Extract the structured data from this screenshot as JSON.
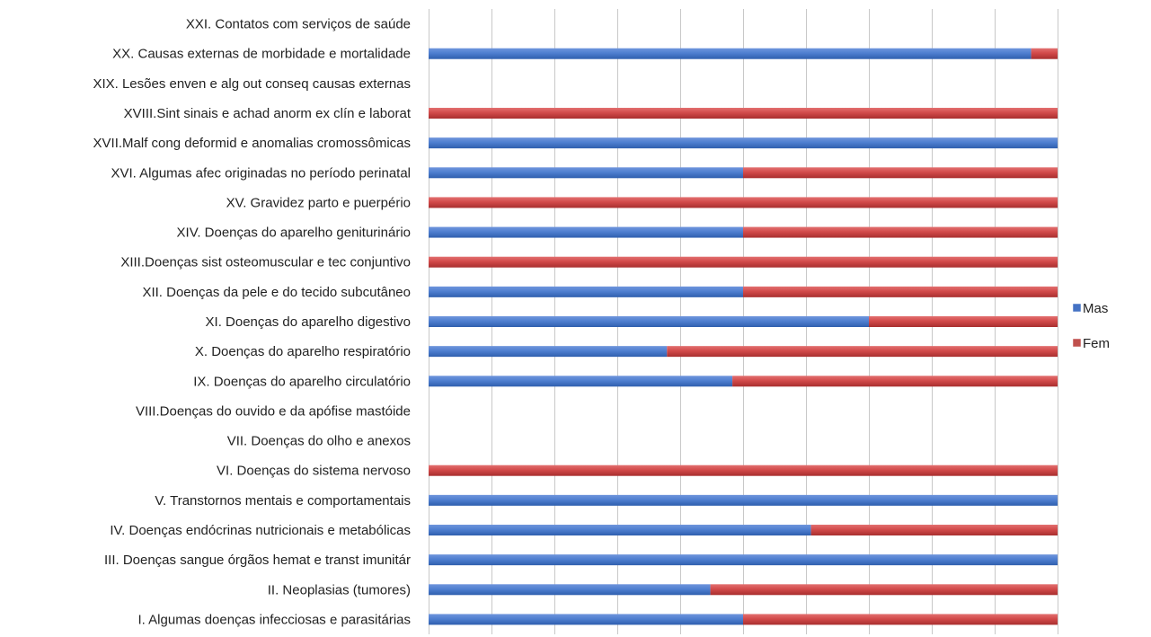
{
  "chart_data": {
    "type": "bar",
    "orientation": "horizontal",
    "stacked": "percent",
    "categories": [
      "I.   Algumas doenças infecciosas e parasitárias",
      "II.  Neoplasias (tumores)",
      "III. Doenças sangue órgãos hemat e transt imunitár",
      "IV.  Doenças endócrinas nutricionais e metabólicas",
      "V.   Transtornos mentais e comportamentais",
      "VI.  Doenças do sistema nervoso",
      "VII. Doenças do olho e anexos",
      "VIII.Doenças do ouvido e da apófise mastóide",
      "IX.  Doenças do aparelho circulatório",
      "X.   Doenças do aparelho respiratório",
      "XI.  Doenças do aparelho digestivo",
      "XII. Doenças da pele e do tecido subcutâneo",
      "XIII.Doenças sist osteomuscular e tec conjuntivo",
      "XIV. Doenças do aparelho geniturinário",
      "XV.  Gravidez parto e puerpério",
      "XVI. Algumas afec originadas no período perinatal",
      "XVII.Malf cong deformid e anomalias cromossômicas",
      "XVIII.Sint sinais e achad anorm ex clín e laborat",
      "XIX. Lesões enven e alg out conseq causas externas",
      "XX.  Causas externas de morbidade e mortalidade",
      "XXI. Contatos com serviços de saúde"
    ],
    "series": [
      {
        "name": "Mas",
        "color": "#4472c4",
        "values": [
          50,
          44.8,
          100,
          60.8,
          100,
          0,
          0,
          0,
          48.3,
          37.9,
          70,
          50,
          0,
          50,
          0,
          50,
          100,
          0,
          0,
          95.8,
          0
        ]
      },
      {
        "name": "Fem",
        "color": "#c0504d",
        "values": [
          50,
          55.2,
          0,
          39.2,
          0,
          100,
          0,
          0,
          51.7,
          62.1,
          30,
          50,
          100,
          50,
          100,
          50,
          0,
          100,
          0,
          4.2,
          0
        ]
      }
    ],
    "xlim": [
      0,
      100
    ],
    "grid": true,
    "legend_position": "right"
  }
}
